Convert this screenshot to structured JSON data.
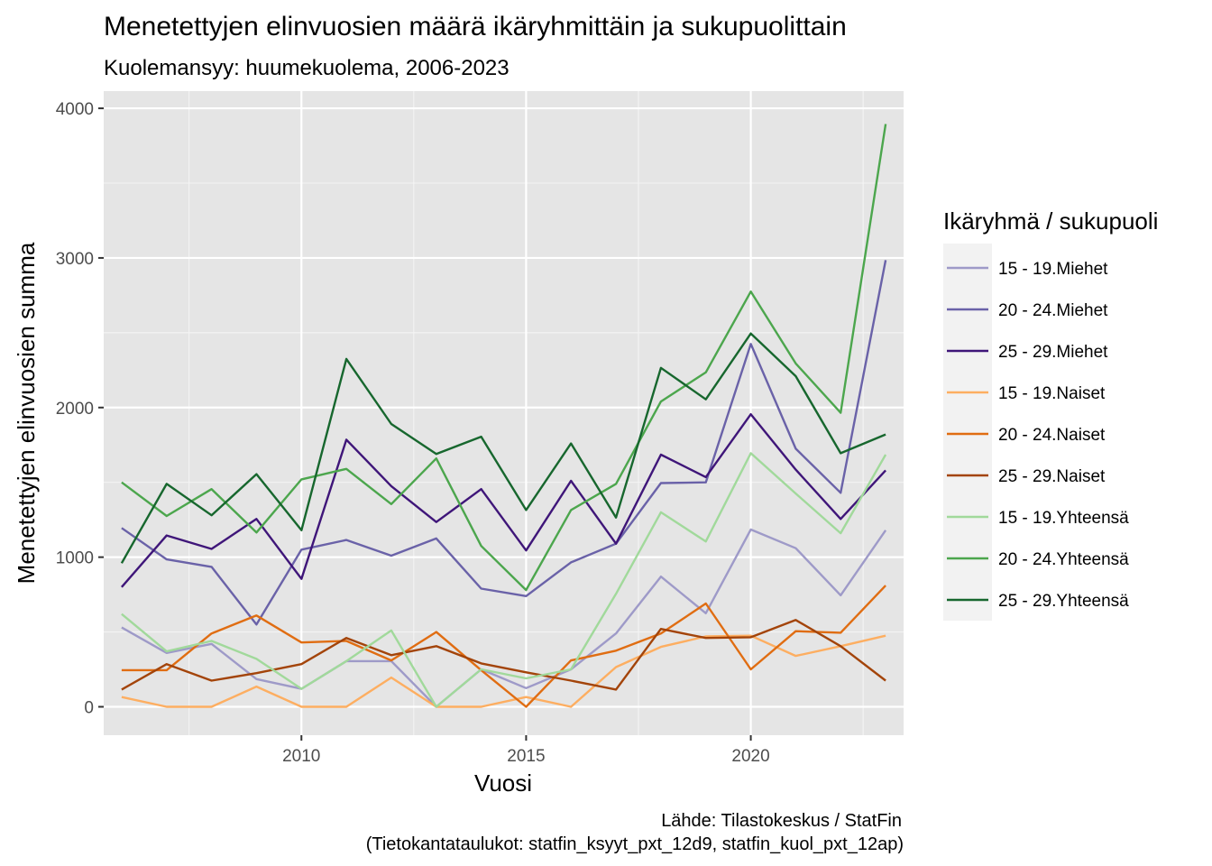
{
  "chart_data": {
    "type": "line",
    "title": "Menetettyjen elinvuosien määrä ikäryhmittäin ja sukupuolittain",
    "subtitle": "Kuolemansyy: huumekuolema, 2006-2023",
    "xlabel": "Vuosi",
    "ylabel": "Menetettyjen elinvuosien summa",
    "caption_line1": "Lähde: Tilastokeskus / StatFin",
    "caption_line2": "(Tietokantataulukot: statfin_ksyyt_pxt_12d9, statfin_kuol_pxt_12ap)",
    "legend_title": "Ikäryhmä / sukupuoli",
    "legend_position": "right",
    "grid": true,
    "xlim": [
      2005.6,
      2023.4
    ],
    "ylim": [
      -190,
      4115
    ],
    "x_ticks": [
      2010,
      2015,
      2020
    ],
    "y_ticks": [
      0,
      1000,
      2000,
      3000,
      4000
    ],
    "x": [
      2006,
      2007,
      2008,
      2009,
      2010,
      2011,
      2012,
      2013,
      2014,
      2015,
      2016,
      2017,
      2018,
      2019,
      2020,
      2021,
      2022,
      2023
    ],
    "series": [
      {
        "name": "15 - 19.Miehet",
        "color": "#9e9ac8",
        "values": [
          530,
          360,
          420,
          185,
          120,
          305,
          305,
          0,
          250,
          125,
          250,
          490,
          870,
          625,
          1185,
          1060,
          745,
          1180
        ]
      },
      {
        "name": "20 - 24.Miehet",
        "color": "#6a62a8",
        "values": [
          1195,
          985,
          935,
          550,
          1050,
          1115,
          1010,
          1125,
          790,
          740,
          965,
          1090,
          1495,
          1500,
          2425,
          1725,
          1430,
          2985
        ]
      },
      {
        "name": "25 - 29.Miehet",
        "color": "#3f1679",
        "values": [
          800,
          1145,
          1055,
          1255,
          855,
          1785,
          1475,
          1235,
          1455,
          1045,
          1510,
          1090,
          1685,
          1535,
          1955,
          1585,
          1255,
          1580
        ]
      },
      {
        "name": "15 - 19.Naiset",
        "color": "#fdae61",
        "values": [
          65,
          0,
          0,
          135,
          0,
          0,
          195,
          0,
          0,
          65,
          0,
          265,
          400,
          470,
          475,
          340,
          405,
          475
        ]
      },
      {
        "name": "20 - 24.Naiset",
        "color": "#e06d12",
        "values": [
          245,
          245,
          490,
          610,
          430,
          440,
          310,
          500,
          245,
          0,
          310,
          375,
          490,
          690,
          250,
          505,
          495,
          810
        ]
      },
      {
        "name": "25 - 29.Naiset",
        "color": "#a3440a",
        "values": [
          115,
          285,
          175,
          225,
          285,
          460,
          345,
          405,
          290,
          230,
          175,
          115,
          520,
          460,
          465,
          580,
          405,
          175
        ]
      },
      {
        "name": "15 - 19.Yhteensä",
        "color": "#a1d99b",
        "values": [
          620,
          370,
          440,
          320,
          120,
          305,
          510,
          0,
          250,
          190,
          250,
          755,
          1300,
          1105,
          1695,
          1425,
          1160,
          1685
        ]
      },
      {
        "name": "20 - 24.Yhteensä",
        "color": "#4ca64d",
        "values": [
          1500,
          1275,
          1455,
          1165,
          1520,
          1590,
          1355,
          1660,
          1075,
          780,
          1315,
          1490,
          2040,
          2235,
          2775,
          2295,
          1965,
          3895
        ]
      },
      {
        "name": "25 - 29.Yhteensä",
        "color": "#17672e",
        "values": [
          960,
          1490,
          1280,
          1555,
          1180,
          2325,
          1890,
          1690,
          1805,
          1315,
          1760,
          1265,
          2265,
          2055,
          2495,
          2210,
          1695,
          1820
        ]
      }
    ]
  }
}
